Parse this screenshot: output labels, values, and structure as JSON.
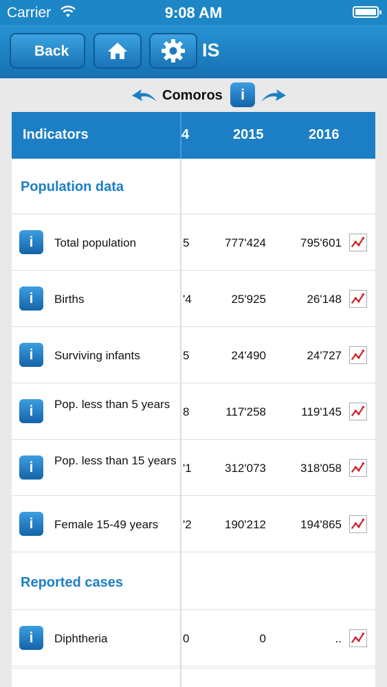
{
  "status_bar": {
    "carrier": "Carrier",
    "time": "9:08 AM"
  },
  "nav": {
    "back_label": "Back",
    "title": "IS"
  },
  "country": {
    "name": "Comoros",
    "info_label": "i"
  },
  "table": {
    "header": {
      "indicators": "Indicators",
      "col0": "4",
      "col1": "2015",
      "col2": "2016"
    },
    "rows": [
      {
        "type": "section",
        "label": "Population data"
      },
      {
        "type": "data",
        "label": "Total population",
        "c0": "5",
        "c1": "777'424",
        "c2": "795'601"
      },
      {
        "type": "data",
        "label": "Births",
        "c0": "'4",
        "c1": "25'925",
        "c2": "26'148"
      },
      {
        "type": "data",
        "label": "Surviving infants",
        "c0": "5",
        "c1": "24'490",
        "c2": "24'727"
      },
      {
        "type": "data",
        "label": "Pop. less than 5 years",
        "c0": "8",
        "c1": "117'258",
        "c2": "119'145"
      },
      {
        "type": "data",
        "label": "Pop. less than 15 years",
        "c0": "'1",
        "c1": "312'073",
        "c2": "318'058"
      },
      {
        "type": "data",
        "label": "Female 15-49 years",
        "c0": "'2",
        "c1": "190'212",
        "c2": "194'865"
      },
      {
        "type": "section",
        "label": "Reported cases"
      },
      {
        "type": "data",
        "label": "Diphtheria",
        "c0": "0",
        "c1": "0",
        "c2": ".."
      }
    ]
  },
  "colors": {
    "accent": "#1c7fc5",
    "navbar": "#1d86c6",
    "chart_line": "#d0202a"
  },
  "icons": {
    "home": "home-icon",
    "settings": "gear-icon",
    "info": "info-icon",
    "chart": "chart-icon"
  }
}
